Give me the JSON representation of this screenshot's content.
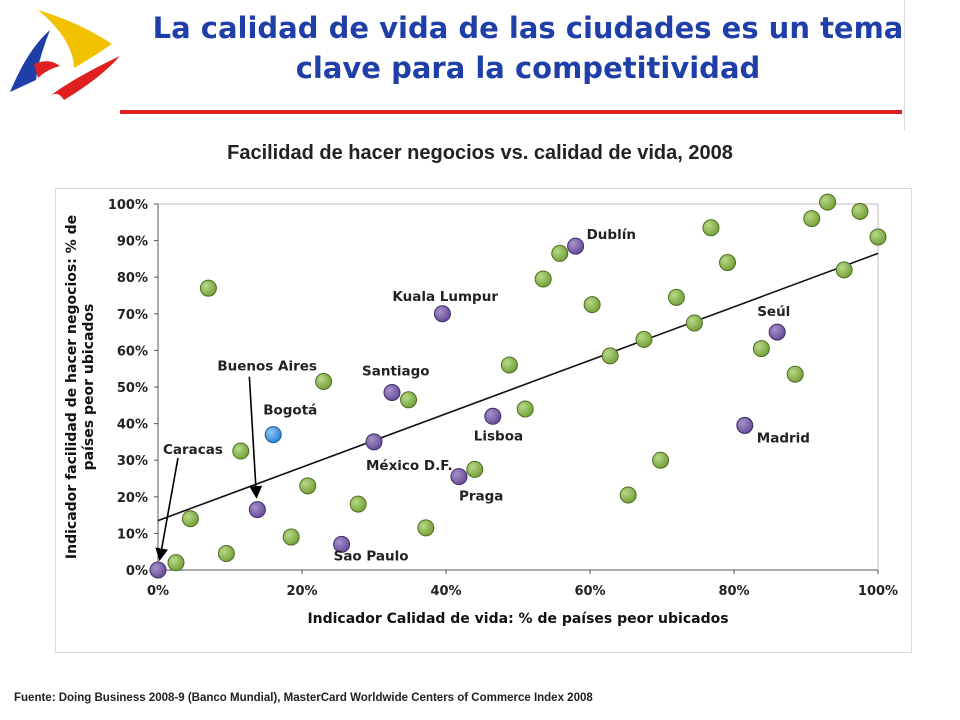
{
  "slide": {
    "title_line_1": "La calidad de vida de las ciudades es un tema",
    "title_line_2": "clave para la competitividad",
    "source": "Fuente: Doing Business 2008-9 (Banco Mundial), MasterCard Worldwide Centers of Commerce Index 2008",
    "colors": {
      "title": "#1f3fa8",
      "rule": "#e02020"
    },
    "logo_icon": "blue-yellow-red-swoosh-logo"
  },
  "chart_data": {
    "type": "scatter",
    "title": "Facilidad de hacer negocios vs. calidad de vida, 2008",
    "xlabel": "Indicador Calidad de vida: % de países peor ubicados",
    "ylabel": "Indicador facilidad de hacer negocios: % de países peor ubicados",
    "xlim": [
      0,
      100
    ],
    "ylim": [
      0,
      100
    ],
    "x_ticks": [
      "0%",
      "20%",
      "40%",
      "60%",
      "80%",
      "100%"
    ],
    "y_ticks": [
      "0%",
      "10%",
      "20%",
      "30%",
      "40%",
      "50%",
      "60%",
      "70%",
      "80%",
      "90%",
      "100%"
    ],
    "grid": false,
    "colors": {
      "other": "#77a33a",
      "highlighted": "#6a4f9a",
      "bogota": "#2e86d6"
    },
    "trendline": {
      "x": [
        0,
        100
      ],
      "y": [
        13.5,
        86.5
      ]
    },
    "labeled_points": [
      {
        "label": "Caracas",
        "x": 0,
        "y": 0,
        "group": "highlighted"
      },
      {
        "label": "Buenos Aires",
        "x": 13.8,
        "y": 16.5,
        "group": "highlighted"
      },
      {
        "label": "Bogotá",
        "x": 16,
        "y": 37,
        "group": "bogota"
      },
      {
        "label": "Sao Paulo",
        "x": 25.5,
        "y": 7,
        "group": "highlighted"
      },
      {
        "label": "México D.F.",
        "x": 30,
        "y": 35,
        "group": "highlighted"
      },
      {
        "label": "Santiago",
        "x": 32.5,
        "y": 48.5,
        "group": "highlighted"
      },
      {
        "label": "Kuala Lumpur",
        "x": 39.5,
        "y": 70,
        "group": "highlighted"
      },
      {
        "label": "Praga",
        "x": 41.8,
        "y": 25.5,
        "group": "highlighted"
      },
      {
        "label": "Lisboa",
        "x": 46.5,
        "y": 42,
        "group": "highlighted"
      },
      {
        "label": "Dublín",
        "x": 58,
        "y": 88.5,
        "group": "highlighted"
      },
      {
        "label": "Madrid",
        "x": 81.5,
        "y": 39.5,
        "group": "highlighted"
      },
      {
        "label": "Seúl",
        "x": 86,
        "y": 65,
        "group": "highlighted"
      }
    ],
    "other_points": [
      {
        "x": 2.5,
        "y": 2
      },
      {
        "x": 4.5,
        "y": 14
      },
      {
        "x": 7,
        "y": 77
      },
      {
        "x": 9.5,
        "y": 4.5
      },
      {
        "x": 11.5,
        "y": 32.5
      },
      {
        "x": 18.5,
        "y": 9
      },
      {
        "x": 20.8,
        "y": 23
      },
      {
        "x": 23,
        "y": 51.5
      },
      {
        "x": 27.8,
        "y": 18
      },
      {
        "x": 34.8,
        "y": 46.5
      },
      {
        "x": 37.2,
        "y": 11.5
      },
      {
        "x": 44,
        "y": 27.5
      },
      {
        "x": 48.8,
        "y": 56
      },
      {
        "x": 51,
        "y": 44
      },
      {
        "x": 53.5,
        "y": 79.5
      },
      {
        "x": 55.8,
        "y": 86.5
      },
      {
        "x": 60.3,
        "y": 72.5
      },
      {
        "x": 62.8,
        "y": 58.5
      },
      {
        "x": 65.3,
        "y": 20.5
      },
      {
        "x": 67.5,
        "y": 63
      },
      {
        "x": 69.8,
        "y": 30
      },
      {
        "x": 72,
        "y": 74.5
      },
      {
        "x": 74.5,
        "y": 67.5
      },
      {
        "x": 76.8,
        "y": 93.5
      },
      {
        "x": 79.1,
        "y": 84
      },
      {
        "x": 83.8,
        "y": 60.5
      },
      {
        "x": 88.5,
        "y": 53.5
      },
      {
        "x": 90.8,
        "y": 96
      },
      {
        "x": 93,
        "y": 100.5
      },
      {
        "x": 95.3,
        "y": 82
      },
      {
        "x": 97.5,
        "y": 98
      },
      {
        "x": 100,
        "y": 91
      }
    ]
  }
}
